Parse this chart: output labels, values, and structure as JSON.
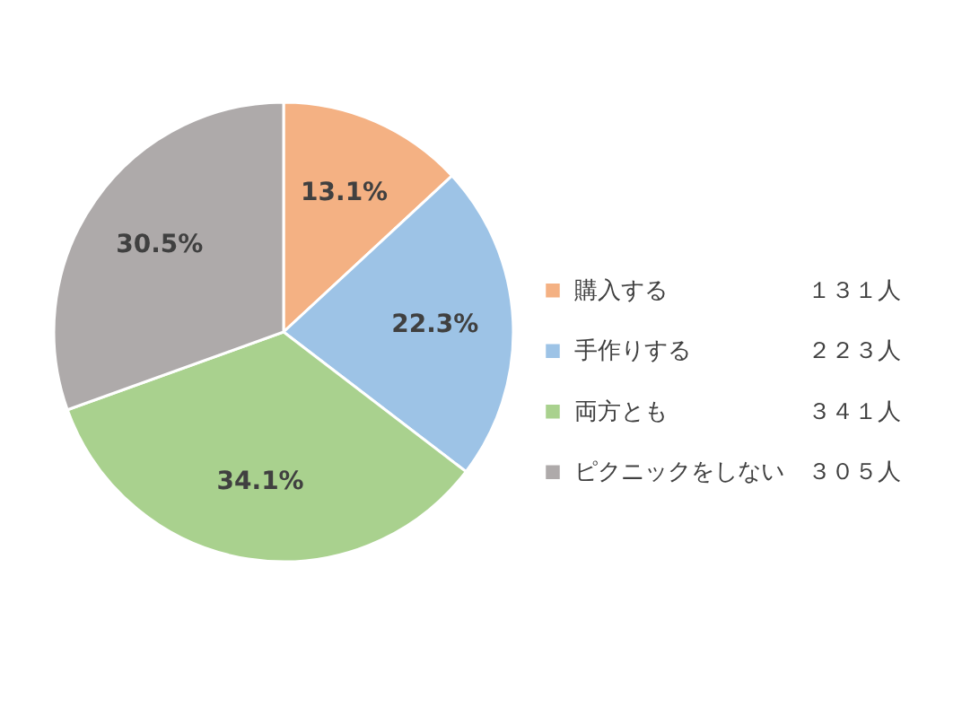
{
  "chart_data": {
    "type": "pie",
    "categories": [
      "購入する",
      "手作りする",
      "両方とも",
      "ピクニックをしない"
    ],
    "values": [
      13.1,
      22.3,
      34.1,
      30.5
    ],
    "colors": [
      "#f4b183",
      "#9dc3e6",
      "#a9d18e",
      "#aeaaaa"
    ],
    "value_labels": [
      "13.1%",
      "22.3%",
      "34.1%",
      "30.5%"
    ],
    "annotations": [
      "１３１人",
      "２２３人",
      "３４１人",
      "３０５人"
    ],
    "legend": "right"
  }
}
